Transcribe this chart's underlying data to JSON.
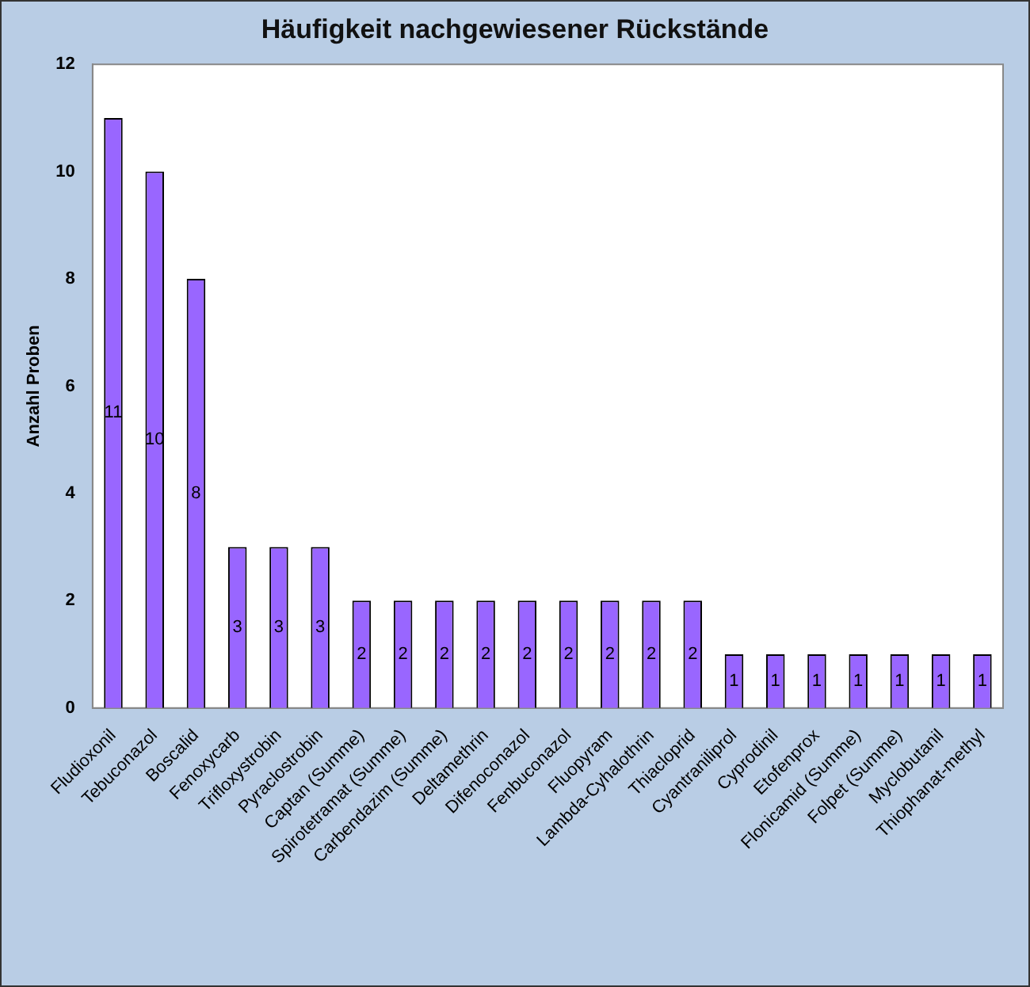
{
  "chart_data": {
    "type": "bar",
    "title": "Häufigkeit nachgewiesener Rückstände",
    "ylabel": "Anzahl Proben",
    "categories": [
      "Fludioxonil",
      "Tebuconazol",
      "Boscalid",
      "Fenoxycarb",
      "Trifloxystrobin",
      "Pyraclostrobin",
      "Captan (Summe)",
      "Spirotetramat (Summe)",
      "Carbendazim (Summe)",
      "Deltamethrin",
      "Difenoconazol",
      "Fenbuconazol",
      "Fluopyram",
      "Lambda-Cyhalothrin",
      "Thiacloprid",
      "Cyantraniliprol",
      "Cyprodinil",
      "Etofenprox",
      "Flonicamid (Summe)",
      "Folpet (Summe)",
      "Myclobutanil",
      "Thiophanat-methyl"
    ],
    "values": [
      11,
      10,
      8,
      3,
      3,
      3,
      2,
      2,
      2,
      2,
      2,
      2,
      2,
      2,
      2,
      1,
      1,
      1,
      1,
      1,
      1,
      1
    ],
    "color": "#9966ff",
    "ylim": [
      0,
      12
    ],
    "yticks": [
      0,
      2,
      4,
      6,
      8,
      10,
      12
    ],
    "grid": false,
    "legend": false,
    "data_labels": true
  }
}
